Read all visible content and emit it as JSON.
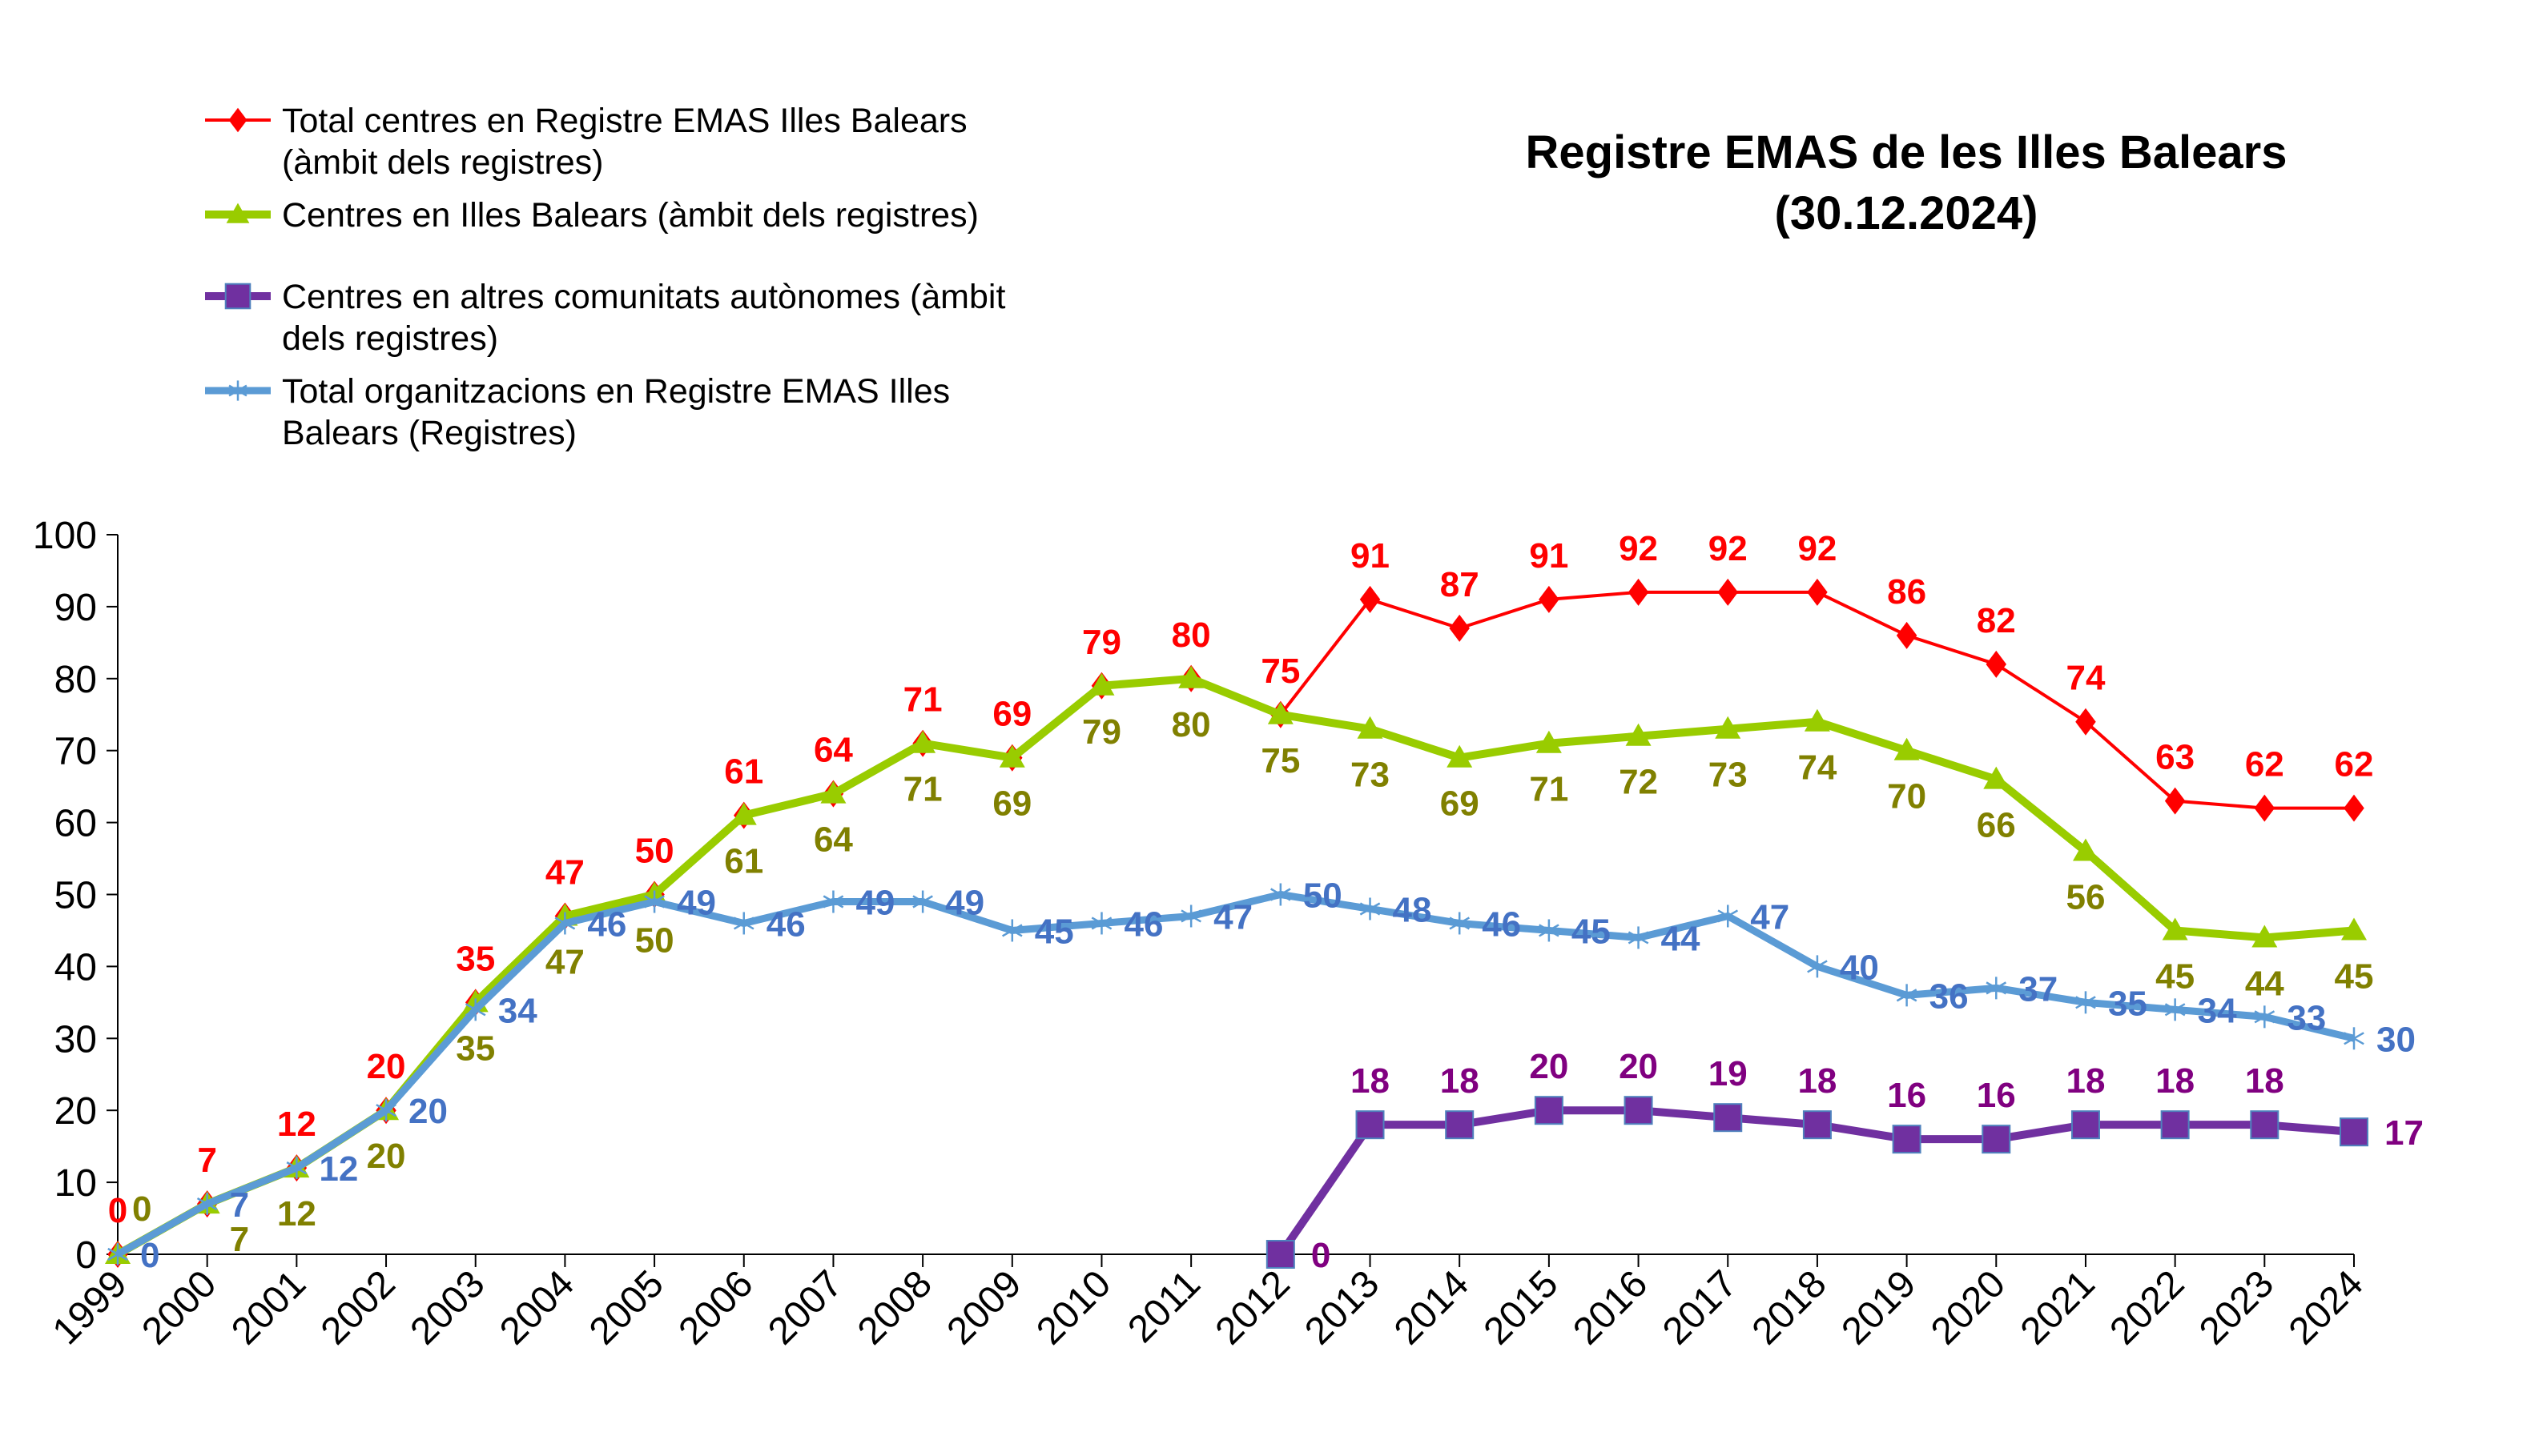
{
  "chart_data": {
    "type": "line",
    "title": [
      "Registre  EMAS de les Illes Balears",
      "(30.12.2024)"
    ],
    "xlabel": "",
    "ylabel": "",
    "ylim": [
      0,
      100
    ],
    "yticks": [
      0,
      10,
      20,
      30,
      40,
      50,
      60,
      70,
      80,
      90,
      100
    ],
    "grid": false,
    "legend_position": "top-left",
    "categories": [
      "1999",
      "2000",
      "2001",
      "2002",
      "2003",
      "2004",
      "2005",
      "2006",
      "2007",
      "2008",
      "2009",
      "2010",
      "2011",
      "2012",
      "2013",
      "2014",
      "2015",
      "2016",
      "2017",
      "2018",
      "2019",
      "2020",
      "2021",
      "2022",
      "2023",
      "2024"
    ],
    "series": [
      {
        "name": "Total centres en Registre EMAS Illes Balears (àmbit dels registres)",
        "legend_lines": [
          "Total centres en Registre EMAS Illes Balears",
          "(àmbit dels registres)"
        ],
        "color": "#ff0000",
        "label_color": "#ff0000",
        "marker": "diamond",
        "values": [
          0,
          7,
          12,
          20,
          35,
          47,
          50,
          61,
          64,
          71,
          69,
          79,
          80,
          75,
          91,
          87,
          91,
          92,
          92,
          92,
          86,
          82,
          74,
          63,
          62,
          62
        ]
      },
      {
        "name": "Centres en Illes Balears (àmbit dels registres)",
        "legend_lines": [
          "Centres en Illes Balears (àmbit dels registres)"
        ],
        "color": "#99cc00",
        "label_color": "#808000",
        "marker": "triangle",
        "values": [
          0,
          7,
          12,
          20,
          35,
          47,
          50,
          61,
          64,
          71,
          69,
          79,
          80,
          75,
          73,
          69,
          71,
          72,
          73,
          74,
          70,
          66,
          56,
          45,
          44,
          45
        ]
      },
      {
        "name": "Centres en altres comunitats autònomes (àmbit dels registres)",
        "legend_lines": [
          "Centres en altres comunitats autònomes (àmbit",
          "dels registres)"
        ],
        "color": "#7030a0",
        "label_color": "#800080",
        "marker": "square",
        "values": [
          null,
          null,
          null,
          null,
          null,
          null,
          null,
          null,
          null,
          null,
          null,
          null,
          null,
          0,
          18,
          18,
          20,
          20,
          19,
          18,
          16,
          16,
          18,
          18,
          18,
          17
        ]
      },
      {
        "name": "Total organitzacions en Registre EMAS Illes Balears (Registres)",
        "legend_lines": [
          "Total organitzacions en Registre EMAS Illes",
          "Balears (Registres)"
        ],
        "color": "#5b9bd5",
        "label_color": "#4472c4",
        "marker": "asterisk",
        "values": [
          0,
          7,
          12,
          20,
          34,
          46,
          49,
          46,
          49,
          49,
          45,
          46,
          47,
          50,
          48,
          46,
          45,
          44,
          47,
          40,
          36,
          37,
          35,
          34,
          33,
          30
        ]
      }
    ]
  }
}
